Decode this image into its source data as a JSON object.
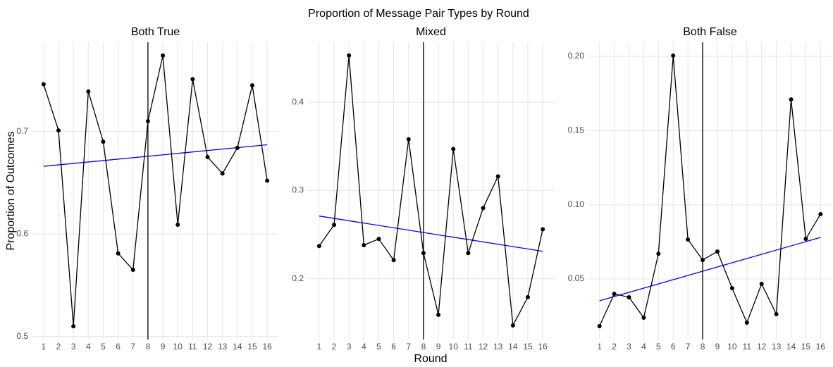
{
  "title": "Proportion of Message Pair Types by Round",
  "xlabel": "Round",
  "ylabel": "Proportion of Outcomes",
  "chart_data": [
    {
      "type": "line",
      "title": "Both True",
      "color": "#000000",
      "x": [
        1,
        2,
        3,
        4,
        5,
        6,
        7,
        8,
        9,
        10,
        11,
        12,
        13,
        14,
        15,
        16
      ],
      "values": [
        0.746,
        0.701,
        0.51,
        0.739,
        0.69,
        0.581,
        0.565,
        0.71,
        0.774,
        0.609,
        0.751,
        0.675,
        0.659,
        0.684,
        0.745,
        0.652
      ],
      "trend": {
        "color": "#0000ff",
        "x": [
          1,
          16
        ],
        "values": [
          0.666,
          0.687
        ]
      },
      "vline": 8,
      "xlim": [
        0.25,
        16.75
      ],
      "xticks": [
        1,
        2,
        3,
        4,
        5,
        6,
        7,
        8,
        9,
        10,
        11,
        12,
        13,
        14,
        15,
        16
      ],
      "ylim": [
        0.497,
        0.787
      ],
      "yticks": [
        0.5,
        0.6,
        0.7
      ],
      "grid": true
    },
    {
      "type": "line",
      "title": "Mixed",
      "color": "#000000",
      "x": [
        1,
        2,
        3,
        4,
        5,
        6,
        7,
        8,
        9,
        10,
        11,
        12,
        13,
        14,
        15,
        16
      ],
      "values": [
        0.237,
        0.261,
        0.453,
        0.238,
        0.245,
        0.221,
        0.358,
        0.229,
        0.159,
        0.347,
        0.229,
        0.28,
        0.316,
        0.147,
        0.179,
        0.256
      ],
      "trend": {
        "color": "#0000ff",
        "x": [
          1,
          16
        ],
        "values": [
          0.271,
          0.231
        ]
      },
      "vline": 8,
      "xlim": [
        0.25,
        16.75
      ],
      "xticks": [
        1,
        2,
        3,
        4,
        5,
        6,
        7,
        8,
        9,
        10,
        11,
        12,
        13,
        14,
        15,
        16
      ],
      "ylim": [
        0.131,
        0.468
      ],
      "yticks": [
        0.2,
        0.3,
        0.4
      ],
      "grid": true
    },
    {
      "type": "line",
      "title": "Both False",
      "color": "#000000",
      "x": [
        1,
        2,
        3,
        4,
        5,
        6,
        7,
        8,
        9,
        10,
        11,
        12,
        13,
        14,
        15,
        16
      ],
      "values": [
        0.0182,
        0.04,
        0.0377,
        0.0239,
        0.067,
        0.2005,
        0.0766,
        0.0628,
        0.0685,
        0.0438,
        0.0206,
        0.0467,
        0.0263,
        0.171,
        0.077,
        0.0937
      ],
      "trend": {
        "color": "#0000ff",
        "x": [
          1,
          16
        ],
        "values": [
          0.0353,
          0.078
        ]
      },
      "vline": 8,
      "xlim": [
        0.25,
        16.75
      ],
      "xticks": [
        1,
        2,
        3,
        4,
        5,
        6,
        7,
        8,
        9,
        10,
        11,
        12,
        13,
        14,
        15,
        16
      ],
      "ylim": [
        0.0092,
        0.2095
      ],
      "yticks": [
        0.05,
        {
          "value": 0.1,
          "label": "0.10"
        },
        0.15,
        {
          "value": 0.2,
          "label": "0.20"
        }
      ],
      "grid": true
    }
  ]
}
